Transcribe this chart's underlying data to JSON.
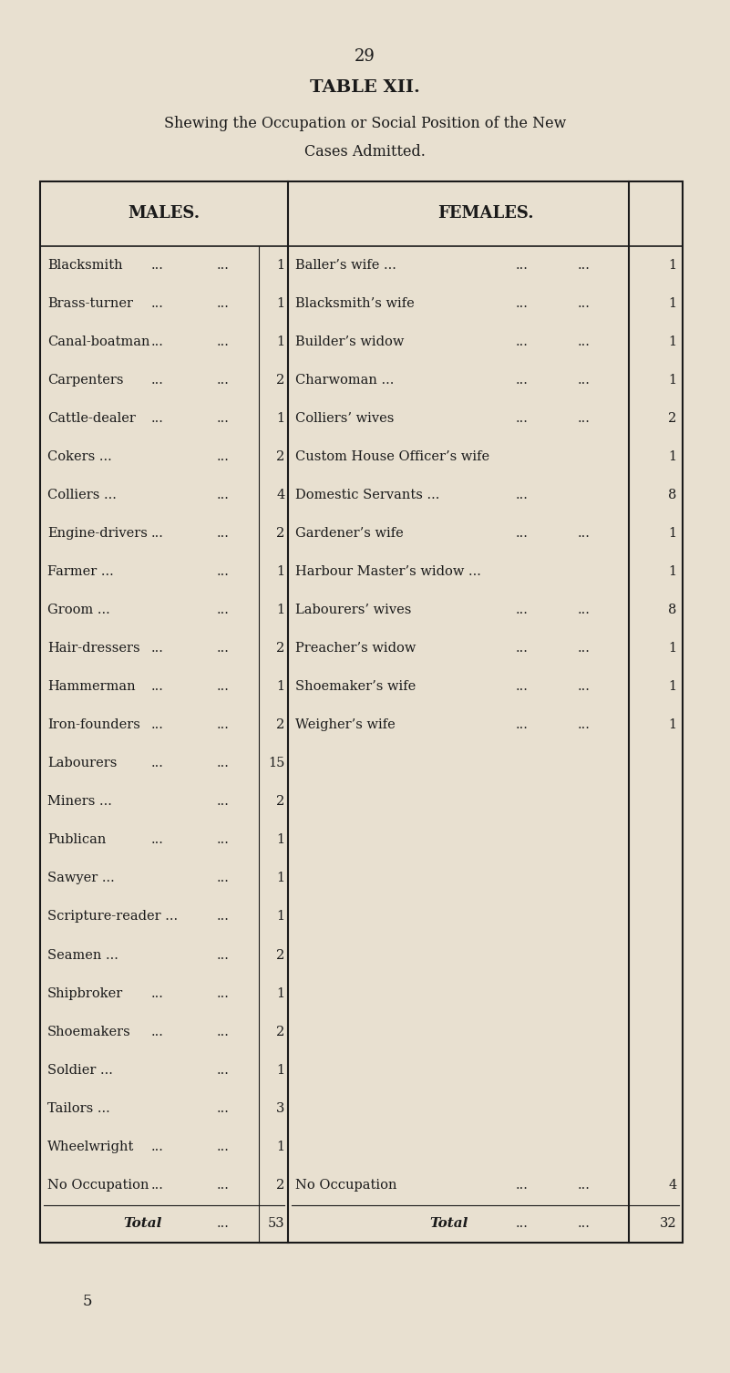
{
  "page_number": "29",
  "title": "TABLE XII.",
  "subtitle_line1": "Shewing the Occupation or Social Position of the New",
  "subtitle_line2": "Cases Admitted.",
  "footer_number": "5",
  "bg_color": "#e8e0d0",
  "males": [
    [
      "Blacksmith",
      "1"
    ],
    [
      "Brass-turner",
      "1"
    ],
    [
      "Canal-boatman",
      "1"
    ],
    [
      "Carpenters",
      "2"
    ],
    [
      "Cattle-dealer",
      "1"
    ],
    [
      "Cokers ...",
      "2"
    ],
    [
      "Colliers ...",
      "4"
    ],
    [
      "Engine-drivers",
      "2"
    ],
    [
      "Farmer ...",
      "1"
    ],
    [
      "Groom ...",
      "1"
    ],
    [
      "Hair-dressers",
      "2"
    ],
    [
      "Hammerman",
      "1"
    ],
    [
      "Iron-founders",
      "2"
    ],
    [
      "Labourers",
      "15"
    ],
    [
      "Miners ...",
      "2"
    ],
    [
      "Publican",
      "1"
    ],
    [
      "Sawyer ...",
      "1"
    ],
    [
      "Scripture-reader ...",
      "1"
    ],
    [
      "Seamen ...",
      "2"
    ],
    [
      "Shipbroker",
      "1"
    ],
    [
      "Shoemakers",
      "2"
    ],
    [
      "Soldier ...",
      "1"
    ],
    [
      "Tailors ...",
      "3"
    ],
    [
      "Wheelwright",
      "1"
    ],
    [
      "No Occupation",
      "2"
    ]
  ],
  "males_total": "53",
  "females": [
    [
      "Baller’s wife ...",
      "...",
      "...",
      "1"
    ],
    [
      "Blacksmith’s wife",
      "...",
      "...",
      "1"
    ],
    [
      "Builder’s widow",
      "...",
      "...",
      "1"
    ],
    [
      "Charwoman ...",
      "...",
      "...",
      "1"
    ],
    [
      "Colliers’ wives",
      "...",
      "...",
      "2"
    ],
    [
      "Custom House Officer’s wife",
      "",
      "",
      "1"
    ],
    [
      "Domestic Servants ...",
      "...",
      "",
      "8"
    ],
    [
      "Gardener’s wife",
      "...",
      "...",
      "1"
    ],
    [
      "Harbour Master’s widow ...",
      "",
      "",
      "1"
    ],
    [
      "Labourers’ wives",
      "...",
      "...",
      "8"
    ],
    [
      "Preacher’s widow",
      "...",
      "...",
      "1"
    ],
    [
      "Shoemaker’s wife",
      "...",
      "...",
      "1"
    ],
    [
      "Weigher’s wife",
      "...",
      "...",
      "1"
    ]
  ],
  "females_no_occ_label": "No Occupation",
  "females_no_occ_val": "4",
  "females_total": "32"
}
